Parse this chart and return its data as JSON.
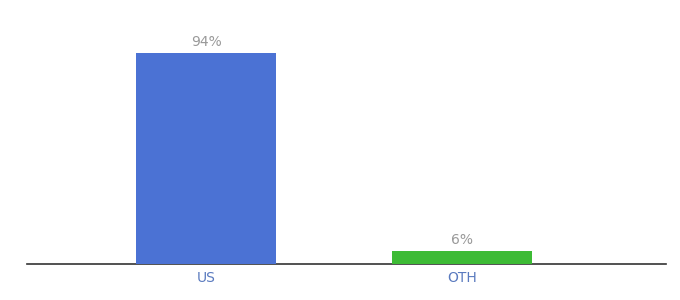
{
  "categories": [
    "US",
    "OTH"
  ],
  "values": [
    94,
    6
  ],
  "bar_colors": [
    "#4b72d4",
    "#3dbb35"
  ],
  "label_texts": [
    "94%",
    "6%"
  ],
  "background_color": "#ffffff",
  "text_color": "#999999",
  "label_fontsize": 10,
  "tick_fontsize": 10,
  "tick_color": "#5a7abf",
  "ylim": [
    0,
    108
  ],
  "bar_width": 0.22,
  "x_positions": [
    0.28,
    0.68
  ],
  "xlim": [
    0.0,
    1.0
  ]
}
